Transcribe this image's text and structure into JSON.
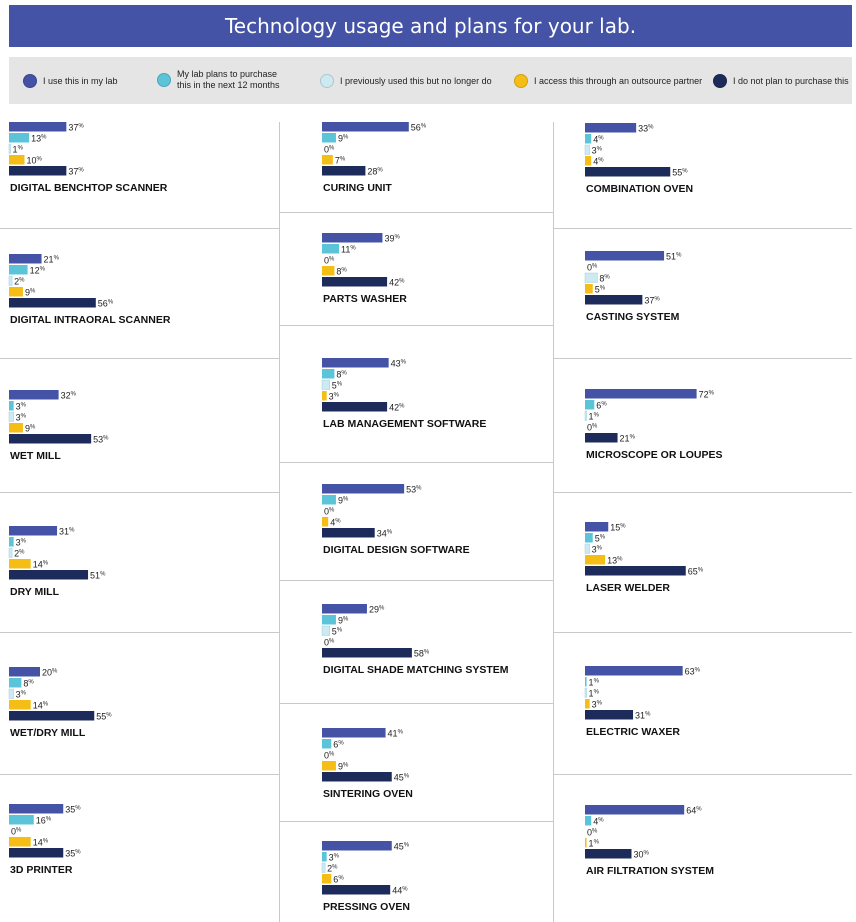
{
  "title": "Technology usage and plans for your lab.",
  "legend": {
    "use": "I use this in my lab",
    "plan": "My lab plans to purchase this in the next 12 months",
    "prev": "I previously used this but no longer do",
    "outsource": "I access this through an outsource partner",
    "noplan": "I do not plan to purchase this"
  },
  "colors": {
    "use": "#4453a6",
    "plan": "#5cc4d9",
    "prev": "#cde9f2",
    "outsource": "#f5be16",
    "noplan": "#1c2b5a"
  },
  "chart_data": {
    "type": "bar",
    "orientation": "horizontal",
    "unit": "%",
    "series": [
      "I use this in my lab",
      "My lab plans to purchase this in the next 12 months",
      "I previously used this but no longer do",
      "I access this through an outsource partner",
      "I do not plan to purchase this"
    ],
    "panels": [
      {
        "name": "DIGITAL BENCHTOP SCANNER",
        "values": [
          37,
          13,
          1,
          10,
          37
        ]
      },
      {
        "name": "DIGITAL INTRAORAL SCANNER",
        "values": [
          21,
          12,
          2,
          9,
          56
        ]
      },
      {
        "name": "WET MILL",
        "values": [
          32,
          3,
          3,
          9,
          53
        ]
      },
      {
        "name": "DRY MILL",
        "values": [
          31,
          3,
          2,
          14,
          51
        ]
      },
      {
        "name": "WET/DRY MILL",
        "values": [
          20,
          8,
          3,
          14,
          55
        ]
      },
      {
        "name": "3D PRINTER",
        "values": [
          35,
          16,
          0,
          14,
          35
        ]
      },
      {
        "name": "CURING UNIT",
        "values": [
          56,
          9,
          0,
          7,
          28
        ]
      },
      {
        "name": "PARTS WASHER",
        "values": [
          39,
          11,
          0,
          8,
          42
        ]
      },
      {
        "name": "LAB MANAGEMENT SOFTWARE",
        "values": [
          43,
          8,
          5,
          3,
          42
        ]
      },
      {
        "name": "DIGITAL DESIGN SOFTWARE",
        "values": [
          53,
          9,
          0,
          4,
          34
        ]
      },
      {
        "name": "DIGITAL SHADE MATCHING SYSTEM",
        "values": [
          29,
          9,
          5,
          0,
          58
        ]
      },
      {
        "name": "SINTERING OVEN",
        "values": [
          41,
          6,
          0,
          9,
          45
        ]
      },
      {
        "name": "PRESSING OVEN",
        "values": [
          45,
          3,
          2,
          6,
          44
        ]
      },
      {
        "name": "COMBINATION OVEN",
        "values": [
          33,
          4,
          3,
          4,
          55
        ]
      },
      {
        "name": "CASTING SYSTEM",
        "values": [
          51,
          0,
          8,
          5,
          37
        ]
      },
      {
        "name": "MICROSCOPE OR LOUPES",
        "values": [
          72,
          6,
          1,
          0,
          21
        ]
      },
      {
        "name": "LASER WELDER",
        "values": [
          15,
          5,
          3,
          13,
          65
        ]
      },
      {
        "name": "ELECTRIC WAXER",
        "values": [
          63,
          1,
          1,
          3,
          31
        ]
      },
      {
        "name": "AIR FILTRATION SYSTEM",
        "values": [
          64,
          4,
          0,
          1,
          30
        ]
      }
    ]
  }
}
